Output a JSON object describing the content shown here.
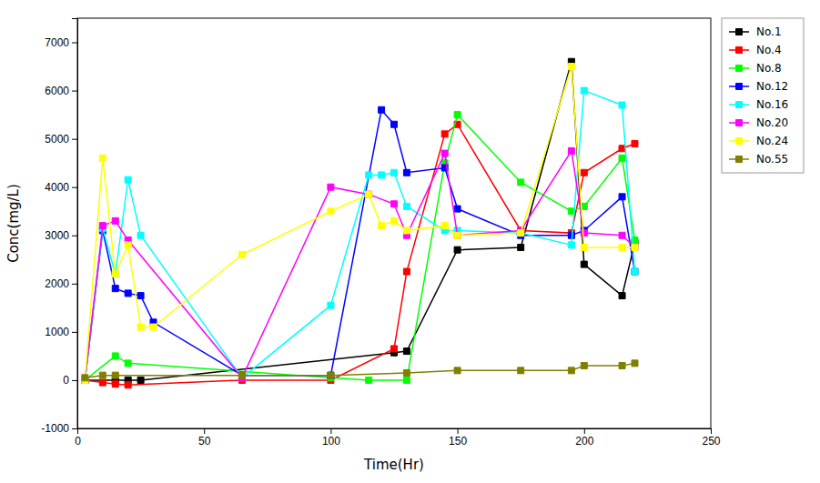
{
  "chart_data": {
    "type": "line",
    "xlabel": "Time(Hr)",
    "ylabel": "Conc(mg/L)",
    "series": [
      {
        "name": "No.1",
        "color": "black",
        "x": [
          3,
          15,
          20,
          25,
          125,
          130,
          150,
          175,
          195,
          200,
          215,
          220
        ],
        "values": [
          0,
          0,
          0,
          0,
          570,
          600,
          2700,
          2750,
          6600,
          2400,
          1750,
          2850
        ]
      },
      {
        "name": "No.4",
        "color": "red",
        "x": [
          3,
          10,
          15,
          20,
          65,
          100,
          125,
          130,
          145,
          150,
          175,
          195,
          200,
          215,
          220
        ],
        "values": [
          0,
          -50,
          -80,
          -100,
          0,
          0,
          650,
          2250,
          5100,
          5300,
          3100,
          3050,
          4300,
          4800,
          4900
        ]
      },
      {
        "name": "No.8",
        "color": "#00ff00",
        "x": [
          3,
          15,
          20,
          100,
          115,
          130,
          145,
          150,
          175,
          195,
          200,
          215,
          220
        ],
        "values": [
          0,
          500,
          350,
          50,
          0,
          0,
          4500,
          5500,
          4100,
          3500,
          3600,
          4600,
          2900
        ]
      },
      {
        "name": "No.12",
        "color": "blue",
        "x": [
          3,
          10,
          15,
          20,
          25,
          30,
          65,
          100,
          120,
          125,
          130,
          145,
          150,
          175,
          195,
          200,
          215,
          220
        ],
        "values": [
          0,
          3100,
          1900,
          1800,
          1750,
          1200,
          100,
          100,
          5600,
          5300,
          4300,
          4400,
          3550,
          3000,
          3000,
          3100,
          3800,
          2250
        ]
      },
      {
        "name": "No.16",
        "color": "cyan",
        "x": [
          3,
          10,
          15,
          20,
          25,
          65,
          100,
          115,
          120,
          125,
          130,
          145,
          150,
          175,
          195,
          200,
          215,
          220
        ],
        "values": [
          0,
          3150,
          2200,
          4150,
          3000,
          50,
          1550,
          4250,
          4250,
          4300,
          3600,
          3100,
          3100,
          3050,
          2800,
          6000,
          5700,
          2250
        ]
      },
      {
        "name": "No.20",
        "color": "magenta",
        "x": [
          3,
          10,
          15,
          20,
          65,
          100,
          115,
          125,
          130,
          145,
          150,
          175,
          195,
          200,
          215,
          220
        ],
        "values": [
          0,
          3200,
          3300,
          2900,
          50,
          4000,
          3850,
          3650,
          3000,
          4700,
          3000,
          3100,
          4750,
          3050,
          3000,
          2750
        ]
      },
      {
        "name": "No.24",
        "color": "yellow",
        "x": [
          3,
          10,
          15,
          20,
          25,
          30,
          65,
          100,
          115,
          120,
          125,
          130,
          145,
          150,
          175,
          195,
          200,
          215,
          220
        ],
        "values": [
          0,
          4600,
          2200,
          2800,
          1100,
          1100,
          2600,
          3500,
          3850,
          3200,
          3300,
          3100,
          3200,
          3000,
          3050,
          6500,
          2750,
          2750,
          2750
        ]
      },
      {
        "name": "No.55",
        "color": "#808000",
        "x": [
          3,
          10,
          15,
          65,
          100,
          130,
          150,
          175,
          195,
          200,
          215,
          220
        ],
        "values": [
          50,
          100,
          100,
          100,
          100,
          150,
          200,
          200,
          200,
          300,
          300,
          350
        ]
      }
    ],
    "xlim": [
      0,
      250
    ],
    "ylim": [
      -1000,
      7500
    ],
    "xticks": [
      0,
      50,
      100,
      150,
      200,
      250
    ],
    "yticks": [
      -1000,
      0,
      1000,
      2000,
      3000,
      4000,
      5000,
      6000,
      7000
    ],
    "marker": "square",
    "line_style": "solid",
    "legend": "right",
    "grid": false
  }
}
